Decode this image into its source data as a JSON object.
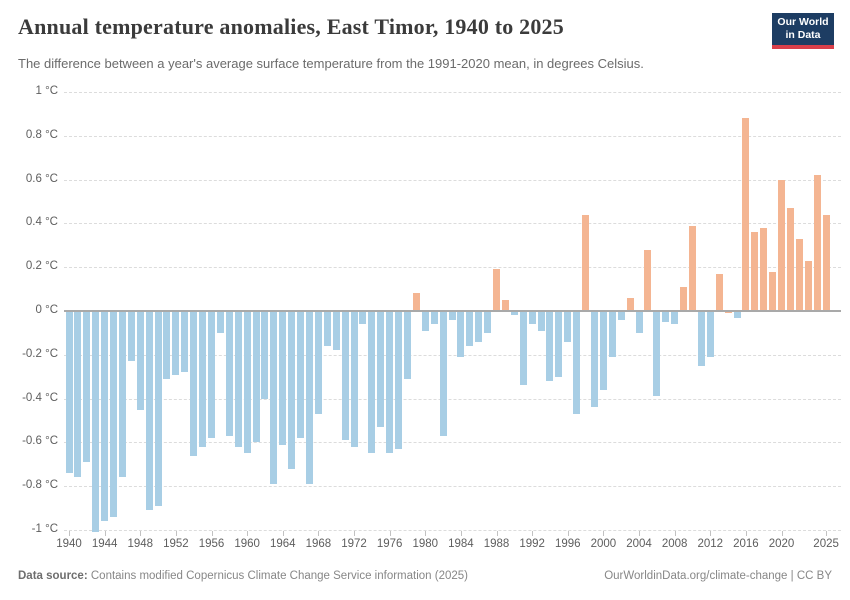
{
  "header": {
    "title": "Annual temperature anomalies, East Timor, 1940 to 2025",
    "subtitle": "The difference between a year's average surface temperature from the 1991-2020 mean, in degrees Celsius.",
    "logo_line1": "Our World",
    "logo_line2": "in Data"
  },
  "footer": {
    "source_label": "Data source:",
    "source_text": "Contains modified Copernicus Climate Change Service information (2025)",
    "url": "OurWorldinData.org/climate-change",
    "separator": "|",
    "license": "CC BY"
  },
  "chart_data": {
    "type": "bar",
    "title": "Annual temperature anomalies, East Timor, 1940 to 2025",
    "xlabel": "",
    "ylabel": "degrees Celsius",
    "ylim": [
      -1.01,
      1.0
    ],
    "grid": "dashed horizontal",
    "legend": "none",
    "colors": {
      "positive": "#f4b592",
      "negative": "#a8cee5"
    },
    "ytick_values": [
      1,
      0.8,
      0.6,
      0.4,
      0.2,
      0,
      -0.2,
      -0.4,
      -0.6,
      -0.8,
      -1
    ],
    "ytick_labels": [
      "1 °C",
      "0.8 °C",
      "0.6 °C",
      "0.4 °C",
      "0.2 °C",
      "0 °C",
      "-0.2 °C",
      "-0.4 °C",
      "-0.6 °C",
      "-0.8 °C",
      "-1 °C"
    ],
    "xtick_labels": [
      1940,
      1944,
      1948,
      1952,
      1956,
      1960,
      1964,
      1968,
      1972,
      1976,
      1980,
      1984,
      1988,
      1992,
      1996,
      2000,
      2004,
      2008,
      2012,
      2016,
      2020,
      2025
    ],
    "years": [
      1940,
      1941,
      1942,
      1943,
      1944,
      1945,
      1946,
      1947,
      1948,
      1949,
      1950,
      1951,
      1952,
      1953,
      1954,
      1955,
      1956,
      1957,
      1958,
      1959,
      1960,
      1961,
      1962,
      1963,
      1964,
      1965,
      1966,
      1967,
      1968,
      1969,
      1970,
      1971,
      1972,
      1973,
      1974,
      1975,
      1976,
      1977,
      1978,
      1979,
      1980,
      1981,
      1982,
      1983,
      1984,
      1985,
      1986,
      1987,
      1988,
      1989,
      1990,
      1991,
      1992,
      1993,
      1994,
      1995,
      1996,
      1997,
      1998,
      1999,
      2000,
      2001,
      2002,
      2003,
      2004,
      2005,
      2006,
      2007,
      2008,
      2009,
      2010,
      2011,
      2012,
      2013,
      2014,
      2015,
      2016,
      2017,
      2018,
      2019,
      2020,
      2021,
      2022,
      2023,
      2024,
      2025
    ],
    "values": [
      -0.74,
      -0.76,
      -0.69,
      -1.01,
      -0.96,
      -0.94,
      -0.76,
      -0.23,
      -0.45,
      -0.91,
      -0.89,
      -0.31,
      -0.29,
      -0.28,
      -0.66,
      -0.62,
      -0.58,
      -0.1,
      -0.57,
      -0.62,
      -0.65,
      -0.6,
      -0.4,
      -0.79,
      -0.61,
      -0.72,
      -0.58,
      -0.79,
      -0.47,
      -0.16,
      -0.18,
      -0.59,
      -0.62,
      -0.06,
      -0.65,
      -0.53,
      -0.65,
      -0.63,
      -0.31,
      0.08,
      -0.09,
      -0.06,
      -0.57,
      -0.04,
      -0.21,
      -0.16,
      -0.14,
      -0.1,
      0.19,
      0.05,
      -0.02,
      -0.34,
      -0.06,
      -0.09,
      -0.32,
      -0.3,
      -0.14,
      -0.47,
      0.44,
      -0.44,
      -0.36,
      -0.21,
      -0.04,
      0.06,
      -0.1,
      0.28,
      -0.39,
      -0.05,
      -0.06,
      0.11,
      0.39,
      -0.25,
      -0.21,
      0.17,
      0.0,
      -0.03,
      0.88,
      0.36,
      0.38,
      0.18,
      0.6,
      0.47,
      0.33,
      0.23,
      0.62,
      0.44
    ]
  }
}
